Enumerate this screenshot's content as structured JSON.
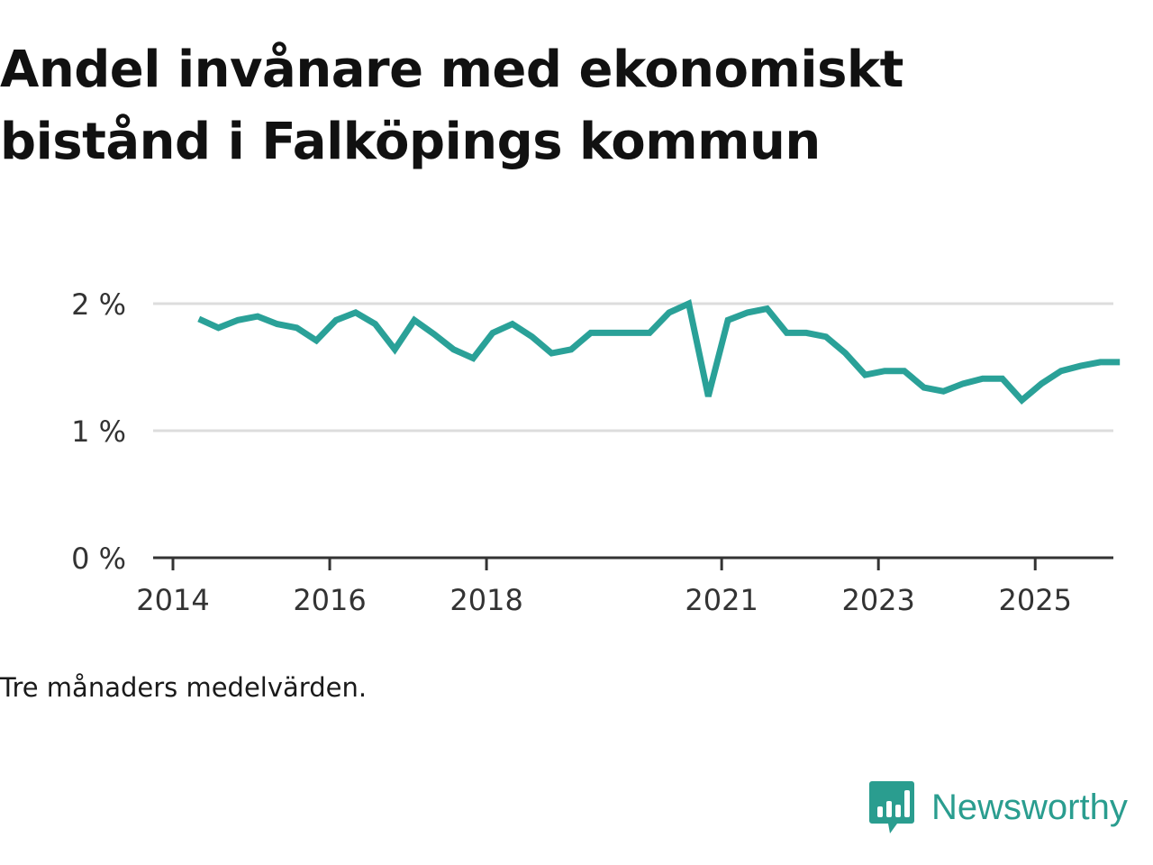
{
  "title": "Andel invånare med ekonomiskt bistånd i Falköpings kommun",
  "note": "Tre månaders medelvärden.",
  "brand": {
    "name": "Newsworthy",
    "logo_icon": "bar-chart-speech-icon"
  },
  "colors": {
    "line": "#2aa198",
    "grid": "#dddddd",
    "axis": "#333333",
    "brand": "#2a9d8f"
  },
  "chart_data": {
    "type": "line",
    "ylim": [
      0,
      2.0
    ],
    "yticks": [
      0,
      1,
      2
    ],
    "ytick_labels": [
      "0 %",
      "1 %",
      "2 %"
    ],
    "xlim": [
      2014.0,
      2026.25
    ],
    "xticks": [
      2014,
      2016,
      2018,
      2021,
      2023,
      2025
    ],
    "xtick_labels": [
      "2014",
      "2016",
      "2018",
      "2021",
      "2023",
      "2025"
    ],
    "series": [
      {
        "name": "Andel invånare med ekonomiskt bistånd",
        "x": [
          2014.33,
          2014.58,
          2014.83,
          2015.08,
          2015.33,
          2015.58,
          2015.83,
          2016.08,
          2016.33,
          2016.58,
          2016.83,
          2017.08,
          2017.33,
          2017.58,
          2017.83,
          2018.08,
          2018.33,
          2018.58,
          2018.83,
          2019.08,
          2019.33,
          2019.58,
          2019.83,
          2020.08,
          2020.33,
          2020.58,
          2020.83,
          2021.08,
          2021.33,
          2021.58,
          2021.83,
          2022.08,
          2022.33,
          2022.58,
          2022.83,
          2023.08,
          2023.33,
          2023.58,
          2023.83,
          2024.08,
          2024.33,
          2024.58,
          2024.83,
          2025.08,
          2025.33,
          2025.58,
          2025.83,
          2026.08
        ],
        "values": [
          1.88,
          1.81,
          1.87,
          1.9,
          1.84,
          1.81,
          1.71,
          1.87,
          1.93,
          1.84,
          1.64,
          1.87,
          1.76,
          1.64,
          1.57,
          1.77,
          1.84,
          1.74,
          1.61,
          1.64,
          1.77,
          1.77,
          1.77,
          1.77,
          1.93,
          2.0,
          1.27,
          1.87,
          1.93,
          1.96,
          1.77,
          1.77,
          1.74,
          1.61,
          1.44,
          1.47,
          1.47,
          1.34,
          1.31,
          1.37,
          1.41,
          1.41,
          1.24,
          1.37,
          1.47,
          1.51,
          1.54,
          1.54
        ]
      }
    ]
  }
}
